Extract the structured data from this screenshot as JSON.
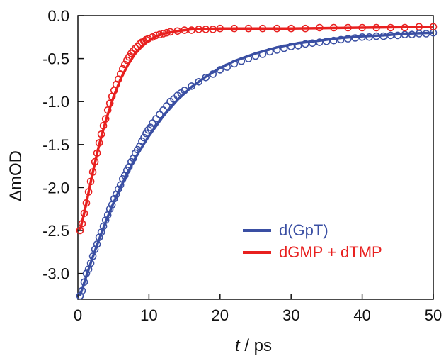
{
  "chart_data": {
    "type": "scatter",
    "title": "",
    "xlabel_italic": "t",
    "xlabel_rest": " / ps",
    "ylabel": "ΔmOD",
    "xlim": [
      0,
      50
    ],
    "ylim": [
      -3.3,
      0.0
    ],
    "x_ticks": [
      0,
      10,
      20,
      30,
      40,
      50
    ],
    "y_ticks": [
      0.0,
      -0.5,
      -1.0,
      -1.5,
      -2.0,
      -2.5,
      -3.0
    ],
    "x_tick_labels": [
      "0",
      "10",
      "20",
      "30",
      "40",
      "50"
    ],
    "y_tick_labels": [
      "0.0",
      "-0.5",
      "-1.0",
      "-1.5",
      "-2.0",
      "-2.5",
      "-3.0"
    ],
    "grid": false,
    "legend_position": "bottom-right",
    "series": [
      {
        "name": "d(GpT)",
        "color": "#3a4fa3",
        "points": [
          [
            0.3,
            -3.26
          ],
          [
            0.6,
            -3.2
          ],
          [
            0.9,
            -3.1
          ],
          [
            1.2,
            -3.0
          ],
          [
            1.5,
            -2.95
          ],
          [
            1.8,
            -2.88
          ],
          [
            2.1,
            -2.8
          ],
          [
            2.4,
            -2.72
          ],
          [
            2.7,
            -2.66
          ],
          [
            3.0,
            -2.58
          ],
          [
            3.3,
            -2.52
          ],
          [
            3.6,
            -2.45
          ],
          [
            3.9,
            -2.38
          ],
          [
            4.2,
            -2.32
          ],
          [
            4.5,
            -2.25
          ],
          [
            4.8,
            -2.2
          ],
          [
            5.1,
            -2.13
          ],
          [
            5.4,
            -2.08
          ],
          [
            5.7,
            -2.02
          ],
          [
            6.0,
            -1.97
          ],
          [
            6.3,
            -1.9
          ],
          [
            6.6,
            -1.86
          ],
          [
            6.9,
            -1.8
          ],
          [
            7.2,
            -1.76
          ],
          [
            7.5,
            -1.7
          ],
          [
            7.8,
            -1.66
          ],
          [
            8.1,
            -1.6
          ],
          [
            8.4,
            -1.56
          ],
          [
            8.7,
            -1.52
          ],
          [
            9.0,
            -1.46
          ],
          [
            9.3,
            -1.42
          ],
          [
            9.6,
            -1.37
          ],
          [
            9.9,
            -1.33
          ],
          [
            10.2,
            -1.3
          ],
          [
            10.5,
            -1.25
          ],
          [
            11.0,
            -1.2
          ],
          [
            11.5,
            -1.15
          ],
          [
            12.0,
            -1.1
          ],
          [
            12.5,
            -1.05
          ],
          [
            13.0,
            -1.0
          ],
          [
            13.5,
            -0.97
          ],
          [
            14.0,
            -0.93
          ],
          [
            14.5,
            -0.9
          ],
          [
            15.0,
            -0.87
          ],
          [
            16.0,
            -0.82
          ],
          [
            17.0,
            -0.77
          ],
          [
            18.0,
            -0.72
          ],
          [
            19.0,
            -0.68
          ],
          [
            20.0,
            -0.63
          ],
          [
            21.0,
            -0.6
          ],
          [
            22.0,
            -0.56
          ],
          [
            23.0,
            -0.53
          ],
          [
            24.0,
            -0.5
          ],
          [
            25.0,
            -0.47
          ],
          [
            26.0,
            -0.45
          ],
          [
            27.0,
            -0.42
          ],
          [
            28.0,
            -0.4
          ],
          [
            29.0,
            -0.38
          ],
          [
            30.0,
            -0.36
          ],
          [
            31.0,
            -0.35
          ],
          [
            32.0,
            -0.33
          ],
          [
            33.0,
            -0.32
          ],
          [
            34.0,
            -0.31
          ],
          [
            35.0,
            -0.3
          ],
          [
            36.0,
            -0.29
          ],
          [
            37.0,
            -0.28
          ],
          [
            38.0,
            -0.27
          ],
          [
            39.0,
            -0.26
          ],
          [
            40.0,
            -0.25
          ],
          [
            41.0,
            -0.25
          ],
          [
            42.0,
            -0.24
          ],
          [
            43.0,
            -0.24
          ],
          [
            44.0,
            -0.23
          ],
          [
            45.0,
            -0.23
          ],
          [
            46.0,
            -0.22
          ],
          [
            47.0,
            -0.22
          ],
          [
            48.0,
            -0.21
          ],
          [
            49.0,
            -0.21
          ],
          [
            50.0,
            -0.2
          ]
        ],
        "fit": [
          [
            0.3,
            -3.26
          ],
          [
            1,
            -3.08
          ],
          [
            2,
            -2.83
          ],
          [
            3,
            -2.6
          ],
          [
            4,
            -2.38
          ],
          [
            5,
            -2.18
          ],
          [
            6,
            -2.0
          ],
          [
            7,
            -1.83
          ],
          [
            8,
            -1.67
          ],
          [
            9,
            -1.53
          ],
          [
            10,
            -1.4
          ],
          [
            12,
            -1.17
          ],
          [
            14,
            -0.98
          ],
          [
            16,
            -0.83
          ],
          [
            18,
            -0.71
          ],
          [
            20,
            -0.61
          ],
          [
            22,
            -0.53
          ],
          [
            25,
            -0.44
          ],
          [
            28,
            -0.37
          ],
          [
            31,
            -0.32
          ],
          [
            34,
            -0.29
          ],
          [
            37,
            -0.26
          ],
          [
            40,
            -0.24
          ],
          [
            43,
            -0.23
          ],
          [
            46,
            -0.21
          ],
          [
            50,
            -0.2
          ]
        ]
      },
      {
        "name": "dGMP + dTMP",
        "color": "#e8201f",
        "points": [
          [
            0.3,
            -2.5
          ],
          [
            0.6,
            -2.42
          ],
          [
            0.9,
            -2.3
          ],
          [
            1.2,
            -2.18
          ],
          [
            1.5,
            -2.05
          ],
          [
            1.8,
            -1.93
          ],
          [
            2.1,
            -1.82
          ],
          [
            2.4,
            -1.7
          ],
          [
            2.7,
            -1.6
          ],
          [
            3.0,
            -1.48
          ],
          [
            3.3,
            -1.38
          ],
          [
            3.6,
            -1.28
          ],
          [
            3.9,
            -1.2
          ],
          [
            4.2,
            -1.1
          ],
          [
            4.5,
            -1.02
          ],
          [
            4.8,
            -0.94
          ],
          [
            5.1,
            -0.87
          ],
          [
            5.4,
            -0.8
          ],
          [
            5.7,
            -0.74
          ],
          [
            6.0,
            -0.68
          ],
          [
            6.3,
            -0.62
          ],
          [
            6.6,
            -0.57
          ],
          [
            6.9,
            -0.52
          ],
          [
            7.2,
            -0.48
          ],
          [
            7.5,
            -0.44
          ],
          [
            7.8,
            -0.41
          ],
          [
            8.1,
            -0.38
          ],
          [
            8.4,
            -0.36
          ],
          [
            8.7,
            -0.33
          ],
          [
            9.0,
            -0.31
          ],
          [
            9.3,
            -0.3
          ],
          [
            9.6,
            -0.28
          ],
          [
            9.9,
            -0.27
          ],
          [
            10.5,
            -0.25
          ],
          [
            11,
            -0.23
          ],
          [
            11.5,
            -0.22
          ],
          [
            12,
            -0.21
          ],
          [
            12.5,
            -0.2
          ],
          [
            13,
            -0.19
          ],
          [
            14,
            -0.18
          ],
          [
            15,
            -0.17
          ],
          [
            16,
            -0.17
          ],
          [
            17,
            -0.16
          ],
          [
            18,
            -0.16
          ],
          [
            19,
            -0.16
          ],
          [
            20,
            -0.15
          ],
          [
            22,
            -0.15
          ],
          [
            24,
            -0.15
          ],
          [
            26,
            -0.15
          ],
          [
            28,
            -0.15
          ],
          [
            30,
            -0.15
          ],
          [
            32,
            -0.15
          ],
          [
            34,
            -0.14
          ],
          [
            36,
            -0.14
          ],
          [
            38,
            -0.14
          ],
          [
            40,
            -0.14
          ],
          [
            42,
            -0.14
          ],
          [
            44,
            -0.14
          ],
          [
            46,
            -0.14
          ],
          [
            48,
            -0.13
          ],
          [
            50,
            -0.13
          ]
        ],
        "fit": [
          [
            0.3,
            -2.5
          ],
          [
            1,
            -2.26
          ],
          [
            2,
            -1.86
          ],
          [
            3,
            -1.5
          ],
          [
            4,
            -1.2
          ],
          [
            5,
            -0.95
          ],
          [
            6,
            -0.74
          ],
          [
            7,
            -0.58
          ],
          [
            8,
            -0.45
          ],
          [
            9,
            -0.36
          ],
          [
            10,
            -0.29
          ],
          [
            11,
            -0.24
          ],
          [
            12,
            -0.21
          ],
          [
            14,
            -0.18
          ],
          [
            16,
            -0.16
          ],
          [
            20,
            -0.15
          ],
          [
            30,
            -0.15
          ],
          [
            40,
            -0.14
          ],
          [
            50,
            -0.13
          ]
        ]
      }
    ]
  }
}
